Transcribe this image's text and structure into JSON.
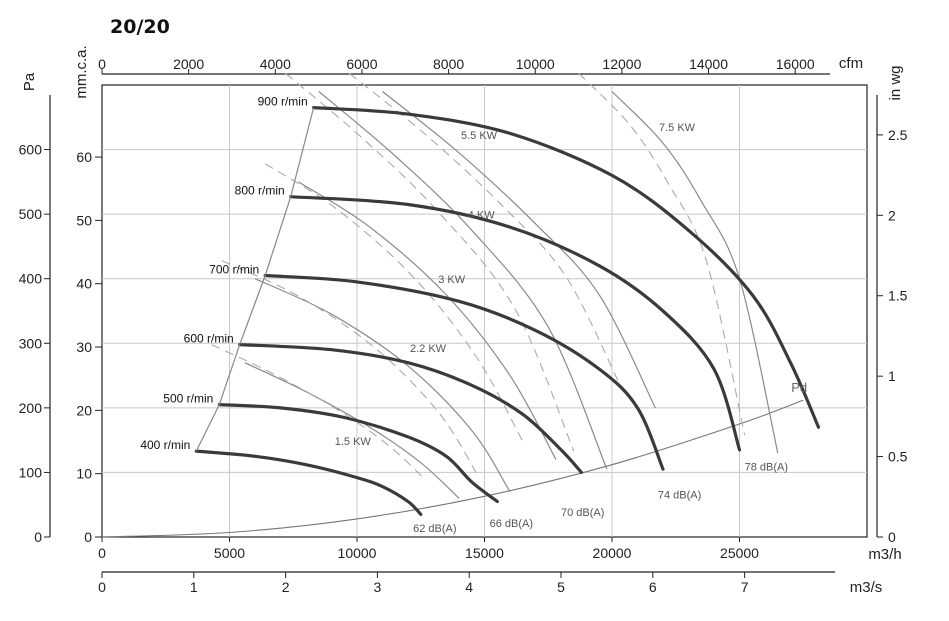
{
  "chart_data": {
    "type": "line",
    "title": "20/20",
    "axes": {
      "x_bottom_m3h": {
        "label": "m3/h",
        "range": [
          0,
          30000
        ],
        "ticks": [
          0,
          5000,
          10000,
          15000,
          20000,
          25000
        ]
      },
      "x_bottom_m3s": {
        "label": "m3/s",
        "ticks": [
          0,
          1,
          2,
          3,
          4,
          5,
          6,
          7
        ]
      },
      "x_top_cfm": {
        "label": "cfm",
        "ticks": [
          0,
          2000,
          4000,
          6000,
          8000,
          10000,
          12000,
          14000,
          16000
        ]
      },
      "y_left_pa": {
        "label": "Pa",
        "range": [
          0,
          700
        ],
        "ticks": [
          0,
          100,
          200,
          300,
          400,
          500,
          600
        ]
      },
      "y_left_mmca": {
        "label": "mm.c.a.",
        "ticks": [
          0,
          10,
          20,
          30,
          40,
          50,
          60
        ]
      },
      "y_right_inwg": {
        "label": "in wg",
        "ticks": [
          "0",
          "0.5",
          "1",
          "1.5",
          "2",
          "2.5"
        ]
      }
    },
    "grid": true,
    "speed_curves": [
      {
        "name": "400 r/min",
        "points": [
          [
            3700,
            133
          ],
          [
            6000,
            125
          ],
          [
            8000,
            112
          ],
          [
            10000,
            92
          ],
          [
            11000,
            78
          ],
          [
            12000,
            55
          ],
          [
            12500,
            35
          ]
        ]
      },
      {
        "name": "500 r/min",
        "points": [
          [
            4600,
            205
          ],
          [
            7000,
            200
          ],
          [
            9500,
            185
          ],
          [
            12000,
            155
          ],
          [
            13500,
            125
          ],
          [
            14500,
            85
          ],
          [
            15500,
            55
          ]
        ]
      },
      {
        "name": "600 r/min",
        "points": [
          [
            5400,
            298
          ],
          [
            9000,
            290
          ],
          [
            12000,
            270
          ],
          [
            14500,
            235
          ],
          [
            16500,
            190
          ],
          [
            18000,
            135
          ],
          [
            18800,
            100
          ]
        ]
      },
      {
        "name": "700 r/min",
        "points": [
          [
            6400,
            405
          ],
          [
            10000,
            395
          ],
          [
            14000,
            365
          ],
          [
            17000,
            320
          ],
          [
            19500,
            260
          ],
          [
            21000,
            200
          ],
          [
            22000,
            105
          ]
        ]
      },
      {
        "name": "800 r/min",
        "points": [
          [
            7400,
            527
          ],
          [
            12000,
            515
          ],
          [
            16000,
            480
          ],
          [
            19500,
            420
          ],
          [
            22000,
            350
          ],
          [
            24000,
            260
          ],
          [
            25000,
            135
          ]
        ]
      },
      {
        "name": "900 r/min",
        "points": [
          [
            8300,
            665
          ],
          [
            12000,
            655
          ],
          [
            16000,
            625
          ],
          [
            20000,
            560
          ],
          [
            23000,
            475
          ],
          [
            25500,
            375
          ],
          [
            27000,
            270
          ],
          [
            28100,
            170
          ]
        ]
      }
    ],
    "power_curves": [
      {
        "name": "1.5 KW",
        "points": [
          [
            5600,
            270
          ],
          [
            8000,
            225
          ],
          [
            10500,
            170
          ],
          [
            12500,
            115
          ],
          [
            14000,
            60
          ]
        ]
      },
      {
        "name": "2.2 KW",
        "points": [
          [
            6000,
            400
          ],
          [
            9000,
            345
          ],
          [
            12000,
            265
          ],
          [
            14500,
            165
          ],
          [
            16000,
            70
          ]
        ]
      },
      {
        "name": "3 KW",
        "points": [
          [
            7700,
            550
          ],
          [
            10500,
            480
          ],
          [
            13500,
            375
          ],
          [
            16000,
            250
          ],
          [
            17800,
            120
          ]
        ]
      },
      {
        "name": "4 KW",
        "points": [
          [
            8500,
            690
          ],
          [
            11500,
            590
          ],
          [
            14500,
            475
          ],
          [
            17500,
            325
          ],
          [
            19800,
            105
          ]
        ]
      },
      {
        "name": "5.5 KW",
        "points": [
          [
            11000,
            690
          ],
          [
            14000,
            595
          ],
          [
            17000,
            485
          ],
          [
            19500,
            375
          ],
          [
            21700,
            200
          ]
        ]
      },
      {
        "name": "7.5 KW",
        "points": [
          [
            20000,
            690
          ],
          [
            22000,
            610
          ],
          [
            23500,
            520
          ],
          [
            25000,
            400
          ],
          [
            26500,
            130
          ]
        ]
      }
    ],
    "db_labels": [
      "62 dB(A)",
      "66 dB(A)",
      "70 dB(A)",
      "74 dB(A)",
      "78 dB(A)"
    ],
    "pd_label": "Pd",
    "pd_curve": [
      [
        0,
        0
      ],
      [
        5000,
        7
      ],
      [
        10000,
        28
      ],
      [
        15000,
        63
      ],
      [
        20000,
        112
      ],
      [
        25000,
        175
      ],
      [
        27500,
        212
      ]
    ]
  }
}
